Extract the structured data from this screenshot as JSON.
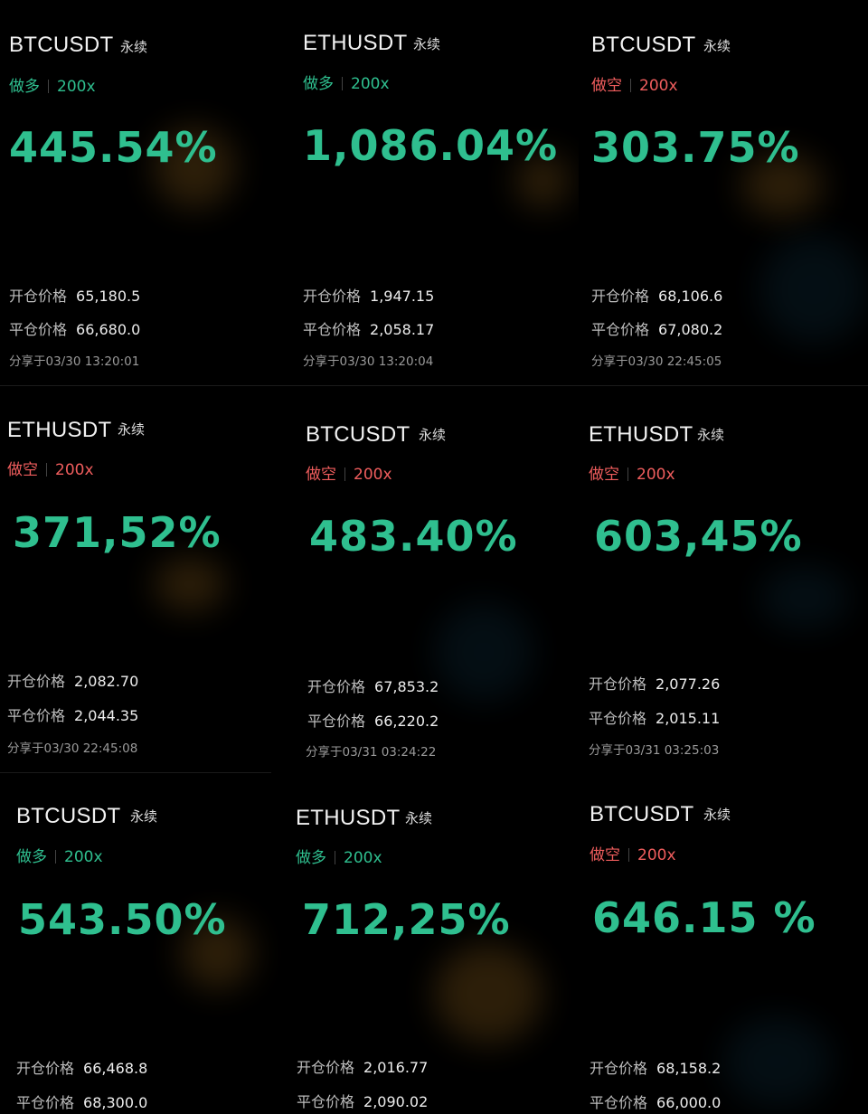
{
  "colors": {
    "long": "#2fbf8f",
    "short": "#ef5d5d",
    "percent": "#2fbf8f",
    "background": "#000000"
  },
  "labels": {
    "open_price": "开仓价格",
    "close_price": "平仓价格",
    "share_prefix": "分享于"
  },
  "cards": [
    {
      "symbol": "BTCUSDT",
      "contract": "永续",
      "side": "做多",
      "side_type": "long",
      "leverage": "200x",
      "roe": "445.54%",
      "open_price": "65,180.5",
      "close_price": "66,680.0",
      "share_time": "03/30 13:20:01"
    },
    {
      "symbol": "ETHUSDT",
      "contract": "永续",
      "side": "做多",
      "side_type": "long",
      "leverage": "200x",
      "roe": "1,086.04%",
      "open_price": "1,947.15",
      "close_price": "2,058.17",
      "share_time": "03/30 13:20:04"
    },
    {
      "symbol": "BTCUSDT",
      "contract": "永续",
      "side": "做空",
      "side_type": "short",
      "leverage": "200x",
      "roe": "303.75%",
      "open_price": "68,106.6",
      "close_price": "67,080.2",
      "share_time": "03/30 22:45:05"
    },
    {
      "symbol": "ETHUSDT",
      "contract": "永续",
      "side": "做空",
      "side_type": "short",
      "leverage": "200x",
      "roe": "371,52%",
      "open_price": "2,082.70",
      "close_price": "2,044.35",
      "share_time": "03/30 22:45:08"
    },
    {
      "symbol": "BTCUSDT",
      "contract": "永续",
      "side": "做空",
      "side_type": "short",
      "leverage": "200x",
      "roe": "483.40%",
      "open_price": "67,853.2",
      "close_price": "66,220.2",
      "share_time": "03/31 03:24:22"
    },
    {
      "symbol": "ETHUSDT",
      "contract": "永续",
      "side": "做空",
      "side_type": "short",
      "leverage": "200x",
      "roe": "603,45%",
      "open_price": "2,077.26",
      "close_price": "2,015.11",
      "share_time": "03/31 03:25:03"
    },
    {
      "symbol": "BTCUSDT",
      "contract": "永续",
      "side": "做多",
      "side_type": "long",
      "leverage": "200x",
      "roe": "543.50%",
      "open_price": "66,468.8",
      "close_price": "68,300.0",
      "share_time": ""
    },
    {
      "symbol": "ETHUSDT",
      "contract": "永续",
      "side": "做多",
      "side_type": "long",
      "leverage": "200x",
      "roe": "712,25%",
      "open_price": "2,016.77",
      "close_price": "2,090.02",
      "share_time": ""
    },
    {
      "symbol": "BTCUSDT",
      "contract": "永续",
      "side": "做空",
      "side_type": "short",
      "leverage": "200x",
      "roe": "646.15 %",
      "open_price": "68,158.2",
      "close_price": "66,000.0",
      "share_time": ""
    }
  ]
}
